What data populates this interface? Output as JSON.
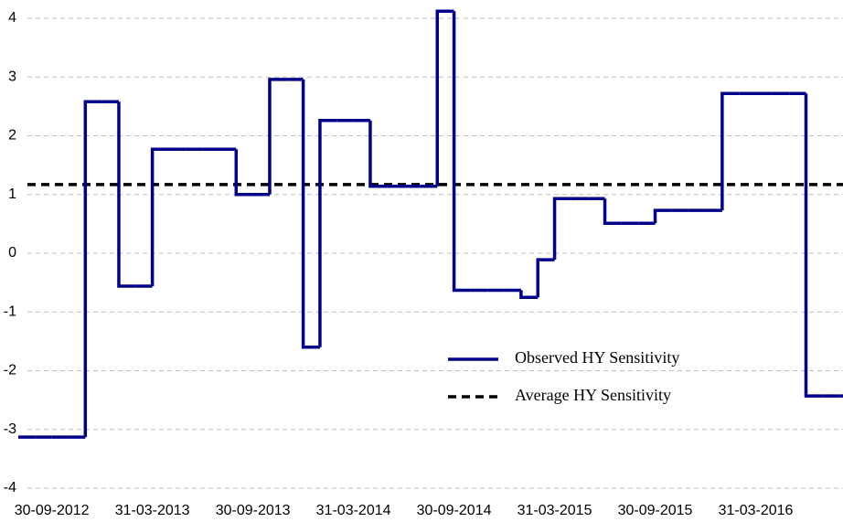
{
  "chart_data": {
    "type": "step",
    "categories": [
      null,
      null,
      "30-09-2012",
      null,
      null,
      null,
      null,
      null,
      "31-03-2013",
      null,
      null,
      null,
      null,
      null,
      "30-09-2013",
      null,
      null,
      null,
      null,
      null,
      "31-03-2014",
      null,
      null,
      null,
      null,
      null,
      "30-09-2014",
      null,
      null,
      null,
      null,
      null,
      "31-03-2015",
      null,
      null,
      null,
      null,
      null,
      "30-09-2015",
      null,
      null,
      null,
      null,
      null,
      "31-03-2016",
      null,
      null,
      null,
      null,
      null
    ],
    "series": [
      {
        "name": "Observed HY Sensitivity",
        "color": "#00008b",
        "values": [
          -3.13,
          -3.13,
          -3.13,
          -3.13,
          2.58,
          2.58,
          -0.56,
          -0.56,
          1.77,
          1.77,
          1.77,
          1.77,
          1.77,
          1.0,
          1.0,
          2.96,
          2.96,
          -1.6,
          2.26,
          2.26,
          2.26,
          1.14,
          1.14,
          1.14,
          1.14,
          4.12,
          -0.63,
          -0.63,
          -0.63,
          -0.63,
          -0.75,
          -0.11,
          0.93,
          0.93,
          0.93,
          0.51,
          0.51,
          0.51,
          0.73,
          0.73,
          0.73,
          0.73,
          2.72,
          2.72,
          2.72,
          2.72,
          2.72,
          -2.43,
          -2.43,
          -2.43
        ]
      }
    ],
    "reference_line": {
      "name": "Average HY Sensitivity",
      "color": "#000000",
      "value": 1.17
    },
    "ylim": [
      -4,
      4
    ],
    "yticks": [
      -4,
      -3,
      -2,
      -1,
      0,
      1,
      2,
      3,
      4
    ],
    "grid": true
  }
}
